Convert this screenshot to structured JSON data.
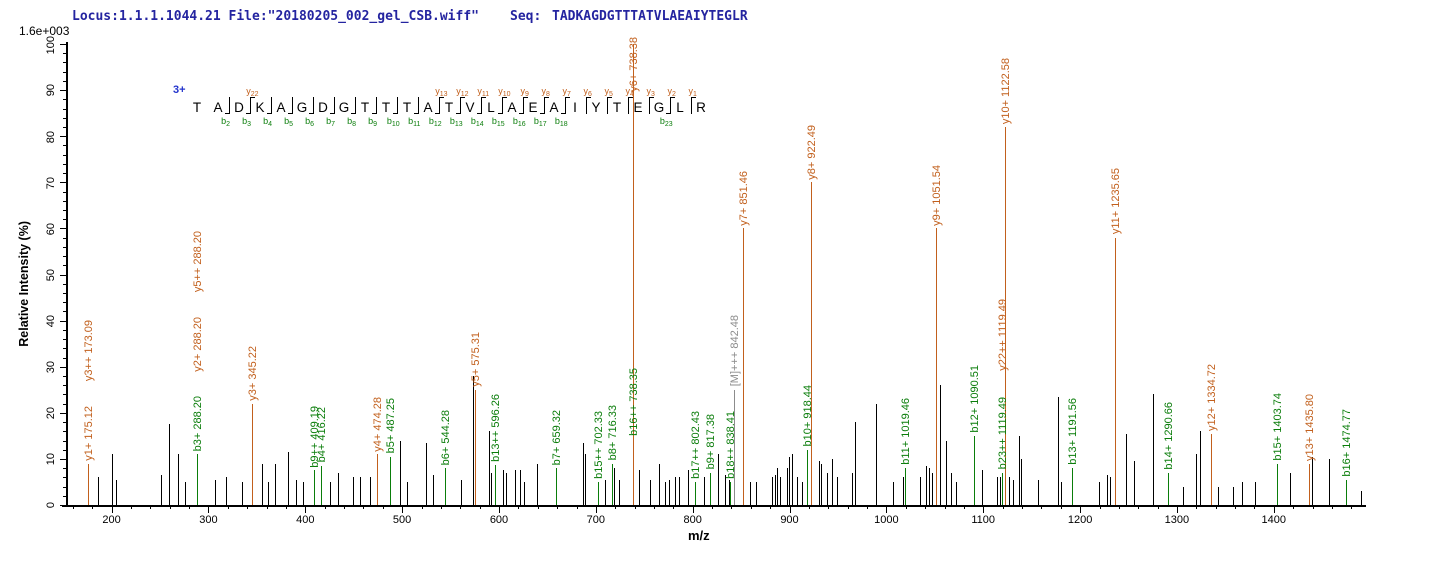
{
  "header": {
    "locus_file": "Locus:1.1.1.1044.21 File:\"20180205_002_gel_CSB.wiff\"",
    "seq_label": "Seq:",
    "sequence": "TADKAGDGTTTATVLAEAIYTEGLR"
  },
  "colors": {
    "y_ion": "#c2601d",
    "b_ion": "#0a7d0a",
    "precursor": "#8c8c8c",
    "peak_black": "#000000",
    "header_text": "#2424a0",
    "charge_text": "#2233cc"
  },
  "chart_data": {
    "type": "bar",
    "subtype": "ms2-fragmentation-spectrum",
    "xlabel": "m/z",
    "ylabel": "Relative  Intensity (%)",
    "intensity_full_scale": "1.6e+003",
    "precursor_charge": "3+",
    "xlim": [
      155,
      1491
    ],
    "ylim": [
      0,
      100
    ],
    "x_major_ticks": [
      200,
      300,
      400,
      500,
      600,
      700,
      800,
      900,
      1000,
      1100,
      1200,
      1300,
      1400
    ],
    "x_minor_tick_step": 20,
    "y_major_tick_step": 10,
    "y_minor_tick_step": 2,
    "grid": false,
    "legend": "none",
    "peptide_map": {
      "sequence": "TADKAGDGTTTATVLAEAIYTEGLR",
      "y_ion_marks": [
        {
          "label": "y22",
          "after_residue": 3
        },
        {
          "label": "y13",
          "after_residue": 12
        },
        {
          "label": "y12",
          "after_residue": 13
        },
        {
          "label": "y11",
          "after_residue": 14
        },
        {
          "label": "y10",
          "after_residue": 15
        },
        {
          "label": "y9",
          "after_residue": 16
        },
        {
          "label": "y8",
          "after_residue": 17
        },
        {
          "label": "y7",
          "after_residue": 18
        },
        {
          "label": "y6",
          "after_residue": 19
        },
        {
          "label": "y5",
          "after_residue": 20
        },
        {
          "label": "y4",
          "after_residue": 21
        },
        {
          "label": "y3",
          "after_residue": 22
        },
        {
          "label": "y2",
          "after_residue": 23
        },
        {
          "label": "y1",
          "after_residue": 24
        }
      ],
      "b_ion_marks": [
        {
          "label": "b2",
          "after_residue": 2
        },
        {
          "label": "b3",
          "after_residue": 3
        },
        {
          "label": "b4",
          "after_residue": 4
        },
        {
          "label": "b5",
          "after_residue": 5
        },
        {
          "label": "b6",
          "after_residue": 6
        },
        {
          "label": "b7",
          "after_residue": 7
        },
        {
          "label": "b8",
          "after_residue": 8
        },
        {
          "label": "b9",
          "after_residue": 9
        },
        {
          "label": "b10",
          "after_residue": 10
        },
        {
          "label": "b11",
          "after_residue": 11
        },
        {
          "label": "b12",
          "after_residue": 12
        },
        {
          "label": "b13",
          "after_residue": 13
        },
        {
          "label": "b14",
          "after_residue": 14
        },
        {
          "label": "b15",
          "after_residue": 15
        },
        {
          "label": "b16",
          "after_residue": 16
        },
        {
          "label": "b17",
          "after_residue": 17
        },
        {
          "label": "b18",
          "after_residue": 18
        },
        {
          "label": "b23",
          "after_residue": 23
        }
      ]
    },
    "annotated_peaks": [
      {
        "mz": 175.12,
        "intensity": 9,
        "color": "y",
        "labels": [
          {
            "text": "y1+ 175.12",
            "type": "y"
          },
          {
            "text": "y3++ 173.09",
            "type": "y"
          }
        ]
      },
      {
        "mz": 288.2,
        "intensity": 11,
        "color": "b",
        "labels": [
          {
            "text": "b3+ 288.20",
            "type": "b"
          },
          {
            "text": "y2+ 288.20",
            "type": "y"
          },
          {
            "text": "y5++ 288.20",
            "type": "y"
          }
        ]
      },
      {
        "mz": 345.22,
        "intensity": 22,
        "color": "y",
        "labels": [
          {
            "text": "y3+ 345.22",
            "type": "y"
          }
        ]
      },
      {
        "mz": 409.19,
        "intensity": 7.5,
        "color": "b",
        "labels": [
          {
            "text": "b9++ 409.19",
            "type": "b"
          }
        ]
      },
      {
        "mz": 416.22,
        "intensity": 8.5,
        "color": "b",
        "labels": [
          {
            "text": "b4+ 416.22",
            "type": "b"
          }
        ]
      },
      {
        "mz": 474.28,
        "intensity": 11,
        "color": "y",
        "labels": [
          {
            "text": "y4+ 474.28",
            "type": "y"
          }
        ]
      },
      {
        "mz": 487.25,
        "intensity": 10.5,
        "color": "b",
        "labels": [
          {
            "text": "b5+ 487.25",
            "type": "b"
          }
        ]
      },
      {
        "mz": 544.28,
        "intensity": 8,
        "color": "b",
        "labels": [
          {
            "text": "b6+ 544.28",
            "type": "b"
          }
        ]
      },
      {
        "mz": 575.31,
        "intensity": 25,
        "color": "y",
        "labels": [
          {
            "text": "y5+ 575.31",
            "type": "y"
          }
        ]
      },
      {
        "mz": 596.26,
        "intensity": 8.7,
        "color": "b",
        "labels": [
          {
            "text": "b13++ 596.26",
            "type": "b"
          }
        ]
      },
      {
        "mz": 659.32,
        "intensity": 8,
        "color": "b",
        "labels": [
          {
            "text": "b7+ 659.32",
            "type": "b"
          }
        ]
      },
      {
        "mz": 702.33,
        "intensity": 5,
        "color": "b",
        "labels": [
          {
            "text": "b15++ 702.33",
            "type": "b"
          }
        ]
      },
      {
        "mz": 716.33,
        "intensity": 9,
        "color": "b",
        "labels": [
          {
            "text": "b8+ 716.33",
            "type": "b"
          }
        ]
      },
      {
        "mz": 738.38,
        "intensity": 100,
        "color": "y",
        "labels": [
          {
            "text": "y6+ 738.38",
            "type": "y"
          },
          {
            "text": "b16++ 738.35",
            "type": "b",
            "bottom_y": 436
          }
        ]
      },
      {
        "mz": 802.43,
        "intensity": 5,
        "color": "b",
        "labels": [
          {
            "text": "b17++ 802.43",
            "type": "b"
          }
        ]
      },
      {
        "mz": 817.38,
        "intensity": 7,
        "color": "b",
        "labels": [
          {
            "text": "b9+ 817.38",
            "type": "b"
          }
        ]
      },
      {
        "mz": 838.41,
        "intensity": 5,
        "color": "b",
        "labels": [
          {
            "text": "b18++ 838.41",
            "type": "b"
          }
        ]
      },
      {
        "mz": 842.48,
        "intensity": 25,
        "color": "M",
        "labels": [
          {
            "text": "[M]+++ 842.48",
            "type": "M"
          }
        ]
      },
      {
        "mz": 851.46,
        "intensity": 60,
        "color": "y",
        "labels": [
          {
            "text": "y7+ 851.46",
            "type": "y"
          }
        ]
      },
      {
        "mz": 918.44,
        "intensity": 12,
        "color": "b",
        "labels": [
          {
            "text": "b10+ 918.44",
            "type": "b"
          }
        ]
      },
      {
        "mz": 922.49,
        "intensity": 70,
        "color": "y",
        "labels": [
          {
            "text": "y8+ 922.49",
            "type": "y"
          }
        ]
      },
      {
        "mz": 1019.46,
        "intensity": 8,
        "color": "b",
        "labels": [
          {
            "text": "b11+ 1019.46",
            "type": "b"
          }
        ]
      },
      {
        "mz": 1051.54,
        "intensity": 60,
        "color": "y",
        "labels": [
          {
            "text": "y9+ 1051.54",
            "type": "y"
          }
        ]
      },
      {
        "mz": 1090.51,
        "intensity": 15,
        "color": "b",
        "labels": [
          {
            "text": "b12+ 1090.51",
            "type": "b"
          }
        ]
      },
      {
        "mz": 1119.49,
        "intensity": 7,
        "color": "b",
        "labels": [
          {
            "text": "b23++ 1119.49",
            "type": "b"
          },
          {
            "text": "y22++ 1119.49",
            "type": "y"
          }
        ]
      },
      {
        "mz": 1122.58,
        "intensity": 82,
        "color": "y",
        "labels": [
          {
            "text": "y10+ 1122.58",
            "type": "y"
          }
        ]
      },
      {
        "mz": 1191.56,
        "intensity": 8,
        "color": "b",
        "labels": [
          {
            "text": "b13+ 1191.56",
            "type": "b"
          }
        ]
      },
      {
        "mz": 1235.65,
        "intensity": 58,
        "color": "y",
        "labels": [
          {
            "text": "y11+ 1235.65",
            "type": "y"
          }
        ]
      },
      {
        "mz": 1290.66,
        "intensity": 7,
        "color": "b",
        "labels": [
          {
            "text": "b14+ 1290.66",
            "type": "b"
          }
        ]
      },
      {
        "mz": 1334.72,
        "intensity": 15.5,
        "color": "y",
        "labels": [
          {
            "text": "y12+ 1334.72",
            "type": "y"
          }
        ]
      },
      {
        "mz": 1403.74,
        "intensity": 9,
        "color": "b",
        "labels": [
          {
            "text": "b15+ 1403.74",
            "type": "b"
          }
        ]
      },
      {
        "mz": 1435.8,
        "intensity": 9,
        "color": "y",
        "labels": [
          {
            "text": "y13+ 1435.80",
            "type": "y"
          }
        ]
      },
      {
        "mz": 1474.77,
        "intensity": 5.5,
        "color": "b",
        "labels": [
          {
            "text": "b16+ 1474.77",
            "type": "b"
          }
        ]
      }
    ],
    "unannotated_peaks": [
      [
        186,
        6
      ],
      [
        200,
        11
      ],
      [
        204,
        5.5
      ],
      [
        251,
        6.5
      ],
      [
        259,
        17.5
      ],
      [
        269,
        11
      ],
      [
        276,
        5
      ],
      [
        307,
        5.5
      ],
      [
        318,
        6
      ],
      [
        335,
        5
      ],
      [
        355,
        9
      ],
      [
        361,
        5
      ],
      [
        369,
        9
      ],
      [
        382,
        11.5
      ],
      [
        390,
        5.5
      ],
      [
        398,
        5
      ],
      [
        425,
        5
      ],
      [
        434,
        7
      ],
      [
        449,
        6
      ],
      [
        456,
        6
      ],
      [
        467,
        6
      ],
      [
        498,
        14
      ],
      [
        505,
        5
      ],
      [
        525,
        13.5
      ],
      [
        532,
        6.5
      ],
      [
        561,
        5.5
      ],
      [
        573,
        28
      ],
      [
        590,
        16
      ],
      [
        592,
        7
      ],
      [
        604,
        7.5
      ],
      [
        607,
        7
      ],
      [
        616,
        7.5
      ],
      [
        622,
        7.5
      ],
      [
        626,
        5
      ],
      [
        639,
        9
      ],
      [
        687,
        13.5
      ],
      [
        689,
        11
      ],
      [
        709,
        5.5
      ],
      [
        719,
        8
      ],
      [
        724,
        5.5
      ],
      [
        745,
        7.5
      ],
      [
        756,
        5.5
      ],
      [
        765,
        9
      ],
      [
        771,
        5
      ],
      [
        775,
        5.5
      ],
      [
        782,
        6
      ],
      [
        786,
        6
      ],
      [
        795,
        7.5
      ],
      [
        812,
        6
      ],
      [
        826,
        11
      ],
      [
        833,
        6.5
      ],
      [
        837,
        5.5
      ],
      [
        859,
        5
      ],
      [
        865,
        5
      ],
      [
        882,
        6
      ],
      [
        885,
        6.5
      ],
      [
        887,
        8
      ],
      [
        890,
        6
      ],
      [
        897,
        8
      ],
      [
        899,
        10.5
      ],
      [
        903,
        11
      ],
      [
        908,
        6
      ],
      [
        913,
        5
      ],
      [
        930,
        9.5
      ],
      [
        932,
        9
      ],
      [
        939,
        7
      ],
      [
        944,
        10
      ],
      [
        949,
        6
      ],
      [
        964,
        7
      ],
      [
        968,
        18
      ],
      [
        989,
        22
      ],
      [
        1007,
        5
      ],
      [
        1017,
        6
      ],
      [
        1035,
        6
      ],
      [
        1041,
        8.5
      ],
      [
        1044,
        8
      ],
      [
        1047,
        7
      ],
      [
        1055,
        26
      ],
      [
        1062,
        14
      ],
      [
        1067,
        7
      ],
      [
        1072,
        5
      ],
      [
        1099,
        7.5
      ],
      [
        1114,
        6
      ],
      [
        1117,
        6
      ],
      [
        1127,
        6
      ],
      [
        1131,
        5.5
      ],
      [
        1137,
        15
      ],
      [
        1139,
        10
      ],
      [
        1157,
        5.5
      ],
      [
        1177,
        23.5
      ],
      [
        1180,
        5
      ],
      [
        1219,
        5
      ],
      [
        1228,
        6.5
      ],
      [
        1231,
        6
      ],
      [
        1247,
        15.5
      ],
      [
        1256,
        9.5
      ],
      [
        1275,
        24
      ],
      [
        1306,
        4
      ],
      [
        1320,
        11
      ],
      [
        1324,
        16
      ],
      [
        1342,
        4
      ],
      [
        1358,
        4
      ],
      [
        1367,
        5
      ],
      [
        1381,
        5
      ],
      [
        1417,
        7
      ],
      [
        1439,
        10.5
      ],
      [
        1457,
        10
      ],
      [
        1490,
        3
      ]
    ]
  }
}
